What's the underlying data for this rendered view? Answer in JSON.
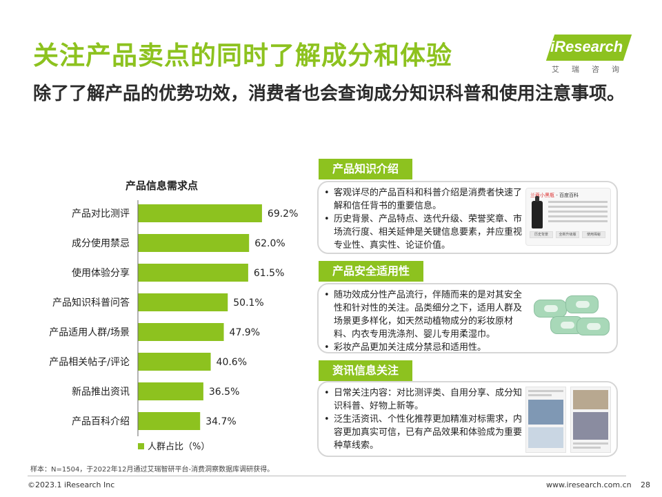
{
  "header": {
    "title": "关注产品卖点的同时了解成分和体验",
    "subtitle": "除了了解产品的优势功效，消费者也会查询成分知识科普和使用注意事项。"
  },
  "logo": {
    "text": "iResearch",
    "cn": "艾瑞咨询"
  },
  "chart_data": {
    "type": "bar",
    "orientation": "horizontal",
    "title": "产品信息需求点",
    "categories": [
      "产品对比测评",
      "成分使用禁忌",
      "使用体验分享",
      "产品知识科普问答",
      "产品适用人群/场景",
      "产品相关帖子/评论",
      "新品推出资讯",
      "产品百科介绍"
    ],
    "series": [
      {
        "name": "人群占比（%）",
        "values": [
          69.2,
          62.0,
          61.5,
          50.1,
          47.9,
          40.6,
          36.5,
          34.7
        ],
        "labels": [
          "69.2%",
          "62.0%",
          "61.5%",
          "50.1%",
          "47.9%",
          "40.6%",
          "36.5%",
          "34.7%"
        ],
        "color": "#8dc21f"
      }
    ],
    "xlim": [
      0,
      100
    ],
    "grid": false,
    "legend_position": "bottom-left"
  },
  "sections": [
    {
      "tag": "产品知识介绍",
      "bullets": [
        "客观详尽的产品百科和科普介绍是消费者快速了解和信任背书的重要信息。",
        "历史背景、产品特点、迭代升级、荣誉奖章、市场流行度、相关延伸是关键信息要素，并应重视专业性、真实性、论证价值。"
      ]
    },
    {
      "tag": "产品安全适用性",
      "bullets": [
        "随功效成分性产品流行，伴随而来的是对其安全性和针对性的关注。品类细分之下，适用人群及场景更多样化，如天然动植物成分的彩妆原材料、内衣专用洗涤剂、婴儿专用柔湿巾。",
        "彩妆产品更加关注成分禁忌和适用性。"
      ]
    },
    {
      "tag": "资讯信息关注",
      "bullets": [
        "日常关注内容：对比测评类、自用分享、成分知识科普、好物上新等。",
        "泛生活资讯、个性化推荐更加精准对标需求，内容更加真实可信，已有产品效果和体验成为重要种草线索。"
      ]
    }
  ],
  "baike_thumb": {
    "head_brand": "兰蔻小黑瓶",
    "head_rest": " - 百度百科",
    "buttons": [
      "历史背景",
      "全新升级版",
      "使用揭秘"
    ]
  },
  "footer": {
    "note": "样本：N=1504，于2022年12月通过艾瑞智研平台-消费洞察数据库调研获得。",
    "copyright": "©2023.1 iResearch Inc",
    "website": "www.iresearch.com.cn",
    "page": "28"
  }
}
